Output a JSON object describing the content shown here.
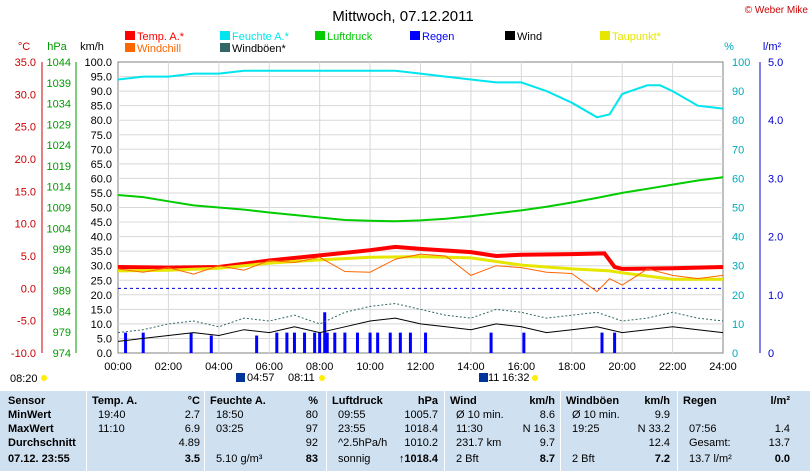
{
  "header": {
    "title": "Mittwoch, 07.12.2011",
    "copyright": "© Weber Mike"
  },
  "axes": {
    "unit_c": "°C",
    "unit_hpa": "hPa",
    "unit_kmh": "km/h",
    "unit_pct": "%",
    "unit_rain": "l/m²",
    "c_ticks": [
      "35.0",
      "30.0",
      "25.0",
      "20.0",
      "15.0",
      "10.0",
      "5.0",
      "0.0",
      "-5.0",
      "-10.0"
    ],
    "hpa_ticks": [
      "1044",
      "1039",
      "1034",
      "1029",
      "1024",
      "1019",
      "1014",
      "1009",
      "1004",
      "999",
      "994",
      "989",
      "984",
      "979",
      "974"
    ],
    "kmh_ticks": [
      "100.0",
      "95.0",
      "90.0",
      "85.0",
      "80.0",
      "75.0",
      "70.0",
      "65.0",
      "60.0",
      "55.0",
      "50.0",
      "45.0",
      "40.0",
      "35.0",
      "30.0",
      "25.0",
      "20.0",
      "15.0",
      "10.0",
      "5.0",
      "0.0"
    ],
    "pct_ticks": [
      "100",
      "90",
      "80",
      "70",
      "60",
      "50",
      "40",
      "30",
      "20",
      "10",
      "0"
    ],
    "rain_ticks": [
      "5.0",
      "4.0",
      "3.0",
      "2.0",
      "1.0",
      "0"
    ],
    "time_ticks": [
      "00:00",
      "02:00",
      "04:00",
      "06:00",
      "08:00",
      "10:00",
      "12:00",
      "14:00",
      "16:00",
      "18:00",
      "20:00",
      "22:00",
      "24:00"
    ]
  },
  "legend": [
    {
      "label": "Temp. A.*",
      "color": "#ff0000"
    },
    {
      "label": "Feuchte A.*",
      "color": "#00e5ee"
    },
    {
      "label": "Luftdruck",
      "color": "#00cc00"
    },
    {
      "label": "Regen",
      "color": "#0000ff"
    },
    {
      "label": "Wind",
      "color": "#000000"
    },
    {
      "label": "Taupunkt*",
      "color": "#e6e600"
    },
    {
      "label": "Windchill",
      "color": "#ff6600"
    },
    {
      "label": "Windböen*",
      "color": "#336666"
    }
  ],
  "sun": {
    "sunrise": "08:20",
    "sunset": "16:32",
    "moon1": "04:57",
    "moon2": "08:11",
    "noon_mark": "11"
  },
  "chart_data": {
    "type": "line",
    "x_unit": "hours",
    "xlim": [
      0,
      24
    ],
    "series": [
      {
        "name": "Temp. A.*",
        "axis": "°C",
        "color": "#ff0000",
        "x": [
          0,
          2,
          4,
          6,
          8,
          10,
          11,
          12,
          14,
          15,
          16,
          18,
          19.3,
          19.7,
          20,
          22,
          24
        ],
        "y": [
          3.3,
          3.2,
          3.3,
          4.3,
          5.1,
          5.9,
          6.4,
          6.1,
          5.6,
          5.0,
          5.2,
          5.3,
          5.4,
          3.3,
          3.0,
          3.1,
          3.3
        ]
      },
      {
        "name": "Feuchte A.*",
        "axis": "%",
        "color": "#00e5ee",
        "x": [
          0,
          1,
          2,
          3,
          4,
          5,
          6,
          7,
          8,
          9,
          10,
          11,
          12,
          13,
          14,
          15,
          16,
          17,
          18,
          19,
          19.5,
          20,
          21,
          21.5,
          22,
          23,
          24
        ],
        "y": [
          94,
          95,
          95,
          96,
          96,
          97,
          97,
          97,
          97,
          97,
          97,
          97,
          96,
          95,
          94,
          93,
          93,
          90,
          86,
          81,
          82,
          89,
          92,
          92,
          90,
          85,
          84
        ]
      },
      {
        "name": "Luftdruck",
        "axis": "hPa",
        "color": "#00cc00",
        "x": [
          0,
          1,
          2,
          3,
          4,
          5,
          6,
          7,
          8,
          9,
          10,
          11,
          12,
          13,
          14,
          15,
          16,
          17,
          18,
          19,
          20,
          21,
          22,
          23,
          24
        ],
        "y": [
          1012,
          1011.5,
          1010.5,
          1009.5,
          1009,
          1008.5,
          1007.8,
          1007.2,
          1006.6,
          1006.0,
          1005.8,
          1005.7,
          1005.9,
          1006.3,
          1006.9,
          1007.6,
          1008.3,
          1009.2,
          1010.2,
          1011.3,
          1012.5,
          1013.5,
          1014.5,
          1015.5,
          1016.3
        ]
      },
      {
        "name": "Taupunkt*",
        "axis": "°C",
        "color": "#e6e600",
        "x": [
          0,
          2,
          4,
          6,
          8,
          10,
          12,
          14,
          16,
          18,
          19.5,
          20,
          22,
          24
        ],
        "y": [
          2.7,
          2.8,
          3.1,
          3.9,
          4.4,
          4.8,
          4.9,
          4.7,
          3.6,
          3.0,
          2.7,
          2.4,
          1.4,
          1.4
        ]
      },
      {
        "name": "Windchill",
        "axis": "°C",
        "color": "#ff6600",
        "x": [
          0,
          1,
          2,
          3,
          4,
          5,
          6,
          7,
          8,
          9,
          10,
          11,
          12,
          13,
          14,
          15,
          16,
          17,
          18,
          19,
          19.5,
          20,
          21,
          22,
          23,
          24
        ],
        "y": [
          3.0,
          2.5,
          3.2,
          2.2,
          3.5,
          2.8,
          4.3,
          4.0,
          4.8,
          2.6,
          2.5,
          4.5,
          5.3,
          5.0,
          2.0,
          3.5,
          3.2,
          2.5,
          2.3,
          -0.5,
          1.5,
          0.5,
          3.0,
          2.0,
          1.5,
          2.0
        ]
      },
      {
        "name": "Wind",
        "axis": "km/h",
        "color": "#000000",
        "x": [
          0,
          1,
          2,
          3,
          4,
          5,
          6,
          7,
          8,
          9,
          10,
          11,
          12,
          13,
          14,
          15,
          16,
          17,
          18,
          19,
          20,
          21,
          22,
          23,
          24
        ],
        "y": [
          4,
          5,
          6,
          7,
          6,
          8,
          7,
          9,
          7,
          9,
          11,
          12,
          10,
          9,
          8,
          10,
          9,
          7,
          8,
          9,
          7,
          8,
          9,
          8,
          7
        ]
      },
      {
        "name": "Windböen*",
        "axis": "km/h",
        "color": "#336666",
        "x": [
          0,
          1,
          2,
          3,
          4,
          5,
          6,
          7,
          8,
          9,
          10,
          11,
          12,
          13,
          14,
          15,
          16,
          17,
          18,
          19,
          20,
          21,
          22,
          23,
          24
        ],
        "y": [
          7,
          8,
          10,
          11,
          9,
          12,
          11,
          13,
          10,
          14,
          16,
          17,
          15,
          13,
          12,
          15,
          14,
          12,
          13,
          14,
          11,
          12,
          14,
          12,
          11
        ]
      }
    ],
    "rain_bars": {
      "name": "Regen",
      "axis": "l/m²",
      "color": "#0000ff",
      "x": [
        0.3,
        1.0,
        2.9,
        3.7,
        5.5,
        6.3,
        6.7,
        7.0,
        7.4,
        7.8,
        8.0,
        8.2,
        8.3,
        8.6,
        9.0,
        9.5,
        10.0,
        10.3,
        10.8,
        11.2,
        11.6,
        12.2,
        14.8,
        16.1,
        19.2,
        19.7
      ],
      "values": [
        0.35,
        0.35,
        0.35,
        0.3,
        0.3,
        0.35,
        0.35,
        0.35,
        0.35,
        0.35,
        0.35,
        0.7,
        0.35,
        0.35,
        0.35,
        0.35,
        0.35,
        0.35,
        0.35,
        0.35,
        0.35,
        0.35,
        0.35,
        0.35,
        0.35,
        0.35
      ]
    }
  },
  "stats": {
    "rows": [
      "Sensor",
      "MinWert",
      "MaxWert",
      "Durchschnitt",
      "07.12. 23:55"
    ],
    "temp": {
      "head": "Temp. A.",
      "unit": "°C",
      "min_t": "19:40",
      "min": "2.7",
      "max_t": "11:10",
      "max": "6.9",
      "avg": "4.89",
      "cur": "3.5"
    },
    "hum": {
      "head": "Feuchte A.",
      "unit": "%",
      "min_t": "18:50",
      "min": "80",
      "max_t": "03:25",
      "max": "97",
      "avg": "92",
      "abs": "5.10 g/m³",
      "cur": "83"
    },
    "press": {
      "head": "Luftdruck",
      "unit": "hPa",
      "min_t": "09:55",
      "min": "1005.7",
      "max_t": "23:55",
      "max": "1018.4",
      "trend": "^2.5hPa/h",
      "avg": "1010.2",
      "fore": "sonnig",
      "cur": "↑1018.4"
    },
    "wind": {
      "head": "Wind",
      "unit": "km/h",
      "min_t": "Ø 10 min.",
      "min": "8.6",
      "max_t": "11:30",
      "max": "N 16.3",
      "dist": "231.7 km",
      "avg": "9.7",
      "bft": "2 Bft",
      "cur": "8.7"
    },
    "gust": {
      "head": "Windböen",
      "unit": "km/h",
      "min_t": "Ø 10 min.",
      "min": "9.9",
      "max_t": "19:25",
      "max": "N 33.2",
      "avg": "12.4",
      "bft": "2 Bft",
      "cur": "7.2"
    },
    "rain": {
      "head": "Regen",
      "unit": "l/m²",
      "max_t": "07:56",
      "max": "1.4",
      "total_l": "Gesamt:",
      "total": "13.7",
      "tot2": "13.7 l/m²",
      "cur": "0.0"
    }
  }
}
